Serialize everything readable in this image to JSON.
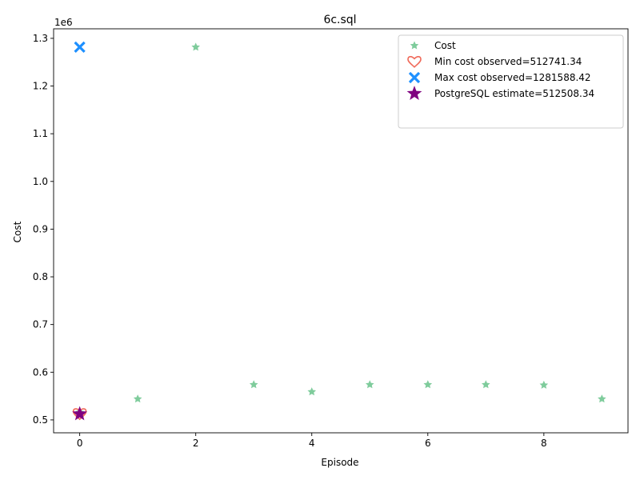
{
  "chart_data": {
    "type": "scatter",
    "title": "6c.sql",
    "xlabel": "Episode",
    "ylabel": "Cost",
    "y_offset_label": "1e6",
    "y_scale": 1000000,
    "xlim": [
      -0.45,
      9.45
    ],
    "ylim": [
      473000,
      1320000
    ],
    "x_ticks": [
      0,
      2,
      4,
      6,
      8
    ],
    "y_ticks": [
      500000,
      600000,
      700000,
      800000,
      900000,
      1000000,
      1100000,
      1200000,
      1300000
    ],
    "y_tick_labels": [
      "0.5",
      "0.6",
      "0.7",
      "0.8",
      "0.9",
      "1.0",
      "1.1",
      "1.2",
      "1.3"
    ],
    "grid": false,
    "legend_position": "top-right",
    "series": [
      {
        "name": "Cost",
        "marker": "star-small",
        "color": "#7fcc9c",
        "x": [
          0,
          1,
          2,
          3,
          4,
          5,
          6,
          7,
          8,
          9
        ],
        "y": [
          516000,
          544000,
          1281588.42,
          574000,
          559000,
          574000,
          574000,
          574000,
          573000,
          544000
        ]
      },
      {
        "name": "Min cost observed=512741.34",
        "marker": "heart",
        "color": "#f06a5a",
        "x": [
          0
        ],
        "y": [
          512741.34
        ]
      },
      {
        "name": "Max cost observed=1281588.42",
        "marker": "x",
        "color": "#1e90ff",
        "x": [
          0
        ],
        "y": [
          1281588.42
        ]
      },
      {
        "name": "PostgreSQL estimate=512508.34",
        "marker": "star",
        "color": "#800080",
        "x": [
          0
        ],
        "y": [
          512508.34
        ]
      }
    ]
  }
}
